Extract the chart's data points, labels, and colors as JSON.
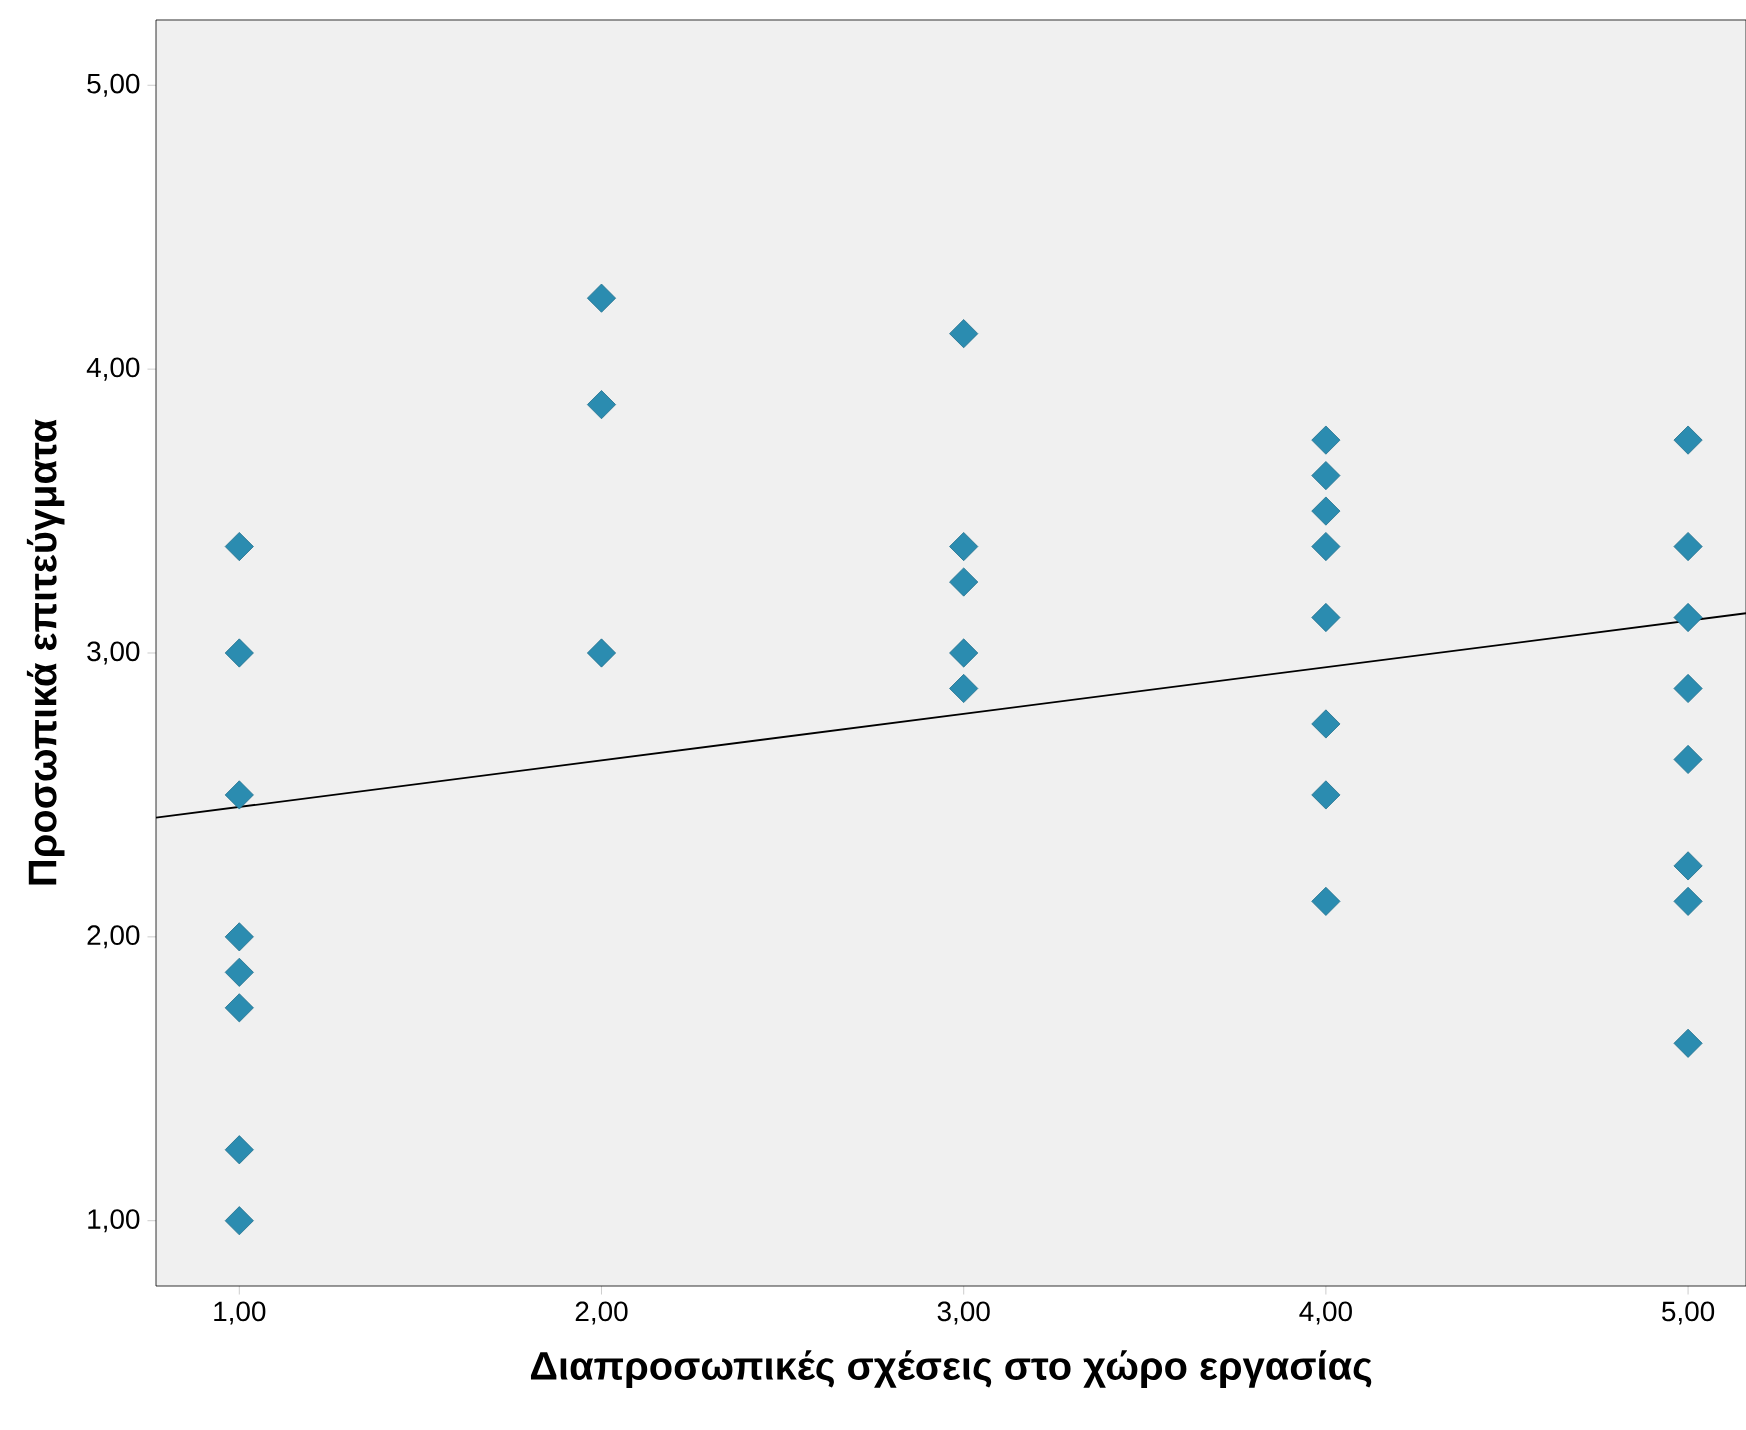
{
  "chart_data": {
    "type": "scatter",
    "xlabel": "Διαπροσωπικές σχέσεις στο χώρο εργασίας",
    "ylabel": "Προσωπικά επιτεύγματα",
    "xlim": [
      0.77,
      5.16
    ],
    "ylim": [
      0.77,
      5.23
    ],
    "xticks": [
      {
        "value": 1,
        "label": "1,00"
      },
      {
        "value": 2,
        "label": "2,00"
      },
      {
        "value": 3,
        "label": "3,00"
      },
      {
        "value": 4,
        "label": "4,00"
      },
      {
        "value": 5,
        "label": "5,00"
      }
    ],
    "yticks": [
      {
        "value": 1,
        "label": "1,00"
      },
      {
        "value": 2,
        "label": "2,00"
      },
      {
        "value": 3,
        "label": "3,00"
      },
      {
        "value": 4,
        "label": "4,00"
      },
      {
        "value": 5,
        "label": "5,00"
      }
    ],
    "marker": "diamond",
    "grid": false,
    "series": [
      {
        "color": "#2b8cb0",
        "x": [
          1,
          1,
          1,
          1,
          1,
          1,
          1,
          1,
          2,
          2,
          2,
          3,
          3,
          3,
          3,
          3,
          4,
          4,
          4,
          4,
          4,
          4,
          4,
          4,
          5,
          5,
          5,
          5,
          5,
          5,
          5,
          5
        ],
        "values": [
          3.375,
          3.0,
          2.5,
          2.0,
          1.875,
          1.75,
          1.25,
          1.0,
          4.25,
          3.875,
          3.0,
          4.125,
          3.375,
          3.25,
          3.0,
          2.875,
          3.75,
          3.625,
          3.5,
          3.375,
          3.125,
          2.75,
          2.5,
          2.125,
          3.75,
          3.375,
          3.125,
          2.875,
          2.625,
          2.25,
          2.125,
          1.625
        ]
      },
      {
        "type": "line",
        "marker": "none",
        "color": "#000000",
        "x": [
          0.77,
          5.16
        ],
        "values": [
          2.42,
          3.14
        ]
      }
    ]
  }
}
